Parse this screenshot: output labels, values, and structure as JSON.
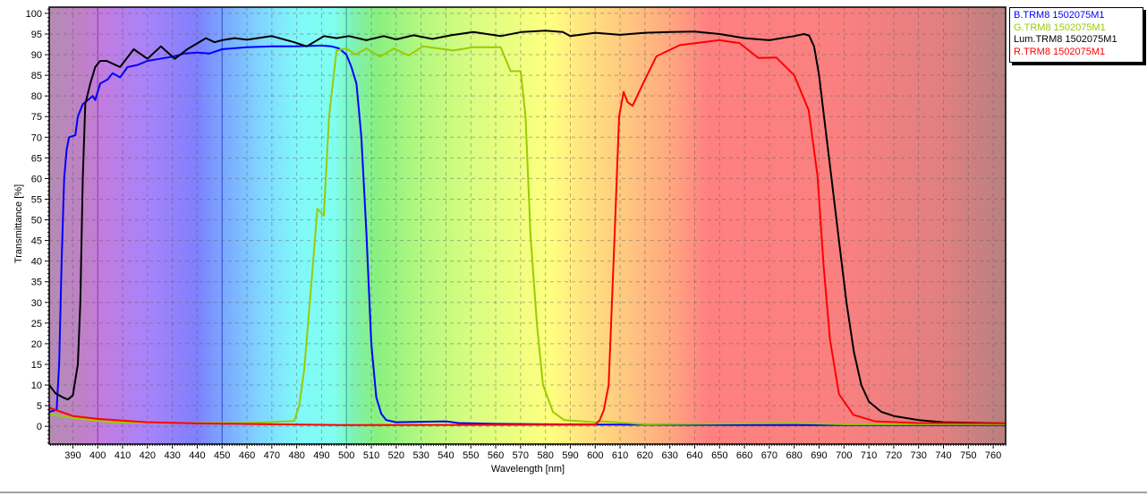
{
  "chart_data": {
    "type": "line",
    "xlabel": "Wavelength [nm]",
    "ylabel": "Transmittance [%]",
    "xlim": [
      380.5,
      765
    ],
    "ylim": [
      -4.3,
      101.5
    ],
    "xticks": [
      390,
      400,
      410,
      420,
      430,
      440,
      450,
      460,
      470,
      480,
      490,
      500,
      510,
      520,
      530,
      540,
      550,
      560,
      570,
      580,
      590,
      600,
      610,
      620,
      630,
      640,
      650,
      660,
      670,
      680,
      690,
      700,
      710,
      720,
      730,
      740,
      750,
      760
    ],
    "yticks": [
      0,
      5,
      10,
      15,
      20,
      25,
      30,
      35,
      40,
      45,
      50,
      55,
      60,
      65,
      70,
      75,
      80,
      85,
      90,
      95,
      100
    ],
    "grid": true,
    "legend_position": "right",
    "background": "visible-spectrum gradient",
    "reference_lines_nm": [
      400,
      450,
      500
    ],
    "series": [
      {
        "name": "B.TRM8 1502075M1",
        "color": "#0000ff",
        "x": [
          380.5,
          383.5,
          384.5,
          385.5,
          386.5,
          387.5,
          388.5,
          391,
          392,
          394,
          396,
          398,
          399,
          401,
          404,
          406,
          409,
          412,
          416,
          420,
          425,
          430,
          435,
          440,
          445,
          450,
          460,
          470,
          480,
          490,
          494,
          497,
          500,
          502,
          504,
          506,
          508,
          510,
          512,
          514,
          516,
          520,
          540,
          545,
          560,
          600,
          700,
          765
        ],
        "y": [
          3.5,
          4,
          15,
          40,
          60,
          67,
          70,
          70.5,
          75,
          78,
          79,
          80,
          79,
          83,
          84,
          85.5,
          84.5,
          87,
          87.5,
          88.5,
          89,
          89.5,
          90.3,
          90.5,
          90.3,
          91.3,
          91.8,
          92,
          92,
          92.2,
          92,
          91.5,
          90,
          87,
          83,
          70,
          47,
          20,
          7,
          3,
          1.5,
          1,
          1.2,
          0.8,
          0.6,
          0.4,
          0.3,
          0.3
        ]
      },
      {
        "name": "G.TRM8 1502075M1",
        "color": "#99cc00",
        "x": [
          380.5,
          390,
          405,
          430,
          460,
          479,
          481,
          483,
          486.5,
          488.3,
          490.9,
          493,
          496,
          500,
          503.5,
          508,
          513.6,
          519,
          525,
          530.8,
          543,
          551,
          562,
          566,
          570,
          572,
          574,
          576.6,
          579,
          583,
          587.5,
          600,
          603,
          620,
          680,
          700,
          765
        ],
        "y": [
          3,
          2,
          1,
          0.8,
          0.8,
          1.3,
          5,
          13.7,
          39,
          52.7,
          51,
          75,
          91,
          91.5,
          90,
          91.5,
          89.5,
          91.5,
          89.8,
          92,
          91,
          91.8,
          91.8,
          86,
          86,
          75,
          46,
          24.5,
          10,
          3.5,
          1.5,
          1,
          1.2,
          0.5,
          0.8,
          0.5,
          0.5
        ]
      },
      {
        "name": "Lum.TRM8 1502075M1",
        "color": "#000000",
        "x": [
          380.5,
          383,
          386,
          388,
          390,
          392,
          393,
          394,
          395,
          397,
          399,
          401,
          403.6,
          409,
          414.5,
          420,
          425.4,
          431,
          436,
          443.5,
          447,
          450,
          455,
          460,
          470,
          479,
          484,
          491,
          496,
          501,
          508,
          515,
          520,
          527,
          534.5,
          542,
          551,
          562,
          570.5,
          580,
          587,
          590,
          600,
          610,
          620,
          630,
          640,
          650,
          660,
          670,
          680,
          684,
          686,
          688,
          690,
          692,
          695,
          698,
          701,
          704,
          707,
          710,
          715,
          720,
          730,
          740,
          765
        ],
        "y": [
          10,
          8,
          7,
          6.5,
          7.5,
          15,
          30,
          60,
          78,
          83,
          87,
          88.5,
          88.5,
          87,
          91.3,
          89,
          92,
          89,
          91.3,
          94,
          93,
          93.5,
          94,
          93.6,
          94.5,
          93,
          92,
          94.5,
          94,
          94.5,
          93.5,
          94.5,
          93.7,
          94.7,
          93.8,
          94.7,
          95.5,
          94.5,
          95.5,
          95.8,
          95.5,
          94.5,
          95.3,
          94.8,
          95.3,
          95.5,
          95.6,
          95,
          94,
          93.5,
          94.5,
          95,
          94.6,
          92,
          85,
          75,
          60,
          45,
          30,
          18,
          10,
          6,
          3.5,
          2.5,
          1.5,
          1,
          0.7
        ]
      },
      {
        "name": "R.TRM8 1502075M1",
        "color": "#ff0000",
        "x": [
          380.5,
          390,
          400,
          420,
          440,
          470,
          500,
          600,
          601.8,
          603.5,
          605.4,
          607.8,
          609.6,
          611.4,
          613,
          615,
          619.8,
          624.6,
          634,
          649.8,
          658,
          665.6,
          672.8,
          680,
          685.8,
          689.4,
          691.8,
          694.4,
          698,
          703.8,
          712.4,
          730,
          765
        ],
        "y": [
          4.5,
          2.5,
          1.8,
          1,
          0.7,
          0.5,
          0.3,
          0.4,
          1.5,
          4,
          10,
          46,
          75,
          81,
          78.5,
          77.6,
          83.7,
          89.6,
          92.3,
          93.5,
          92.8,
          89.2,
          89.3,
          85,
          76.6,
          60.5,
          39,
          21,
          7.8,
          2.8,
          1.2,
          0.8,
          0.7
        ]
      }
    ]
  }
}
